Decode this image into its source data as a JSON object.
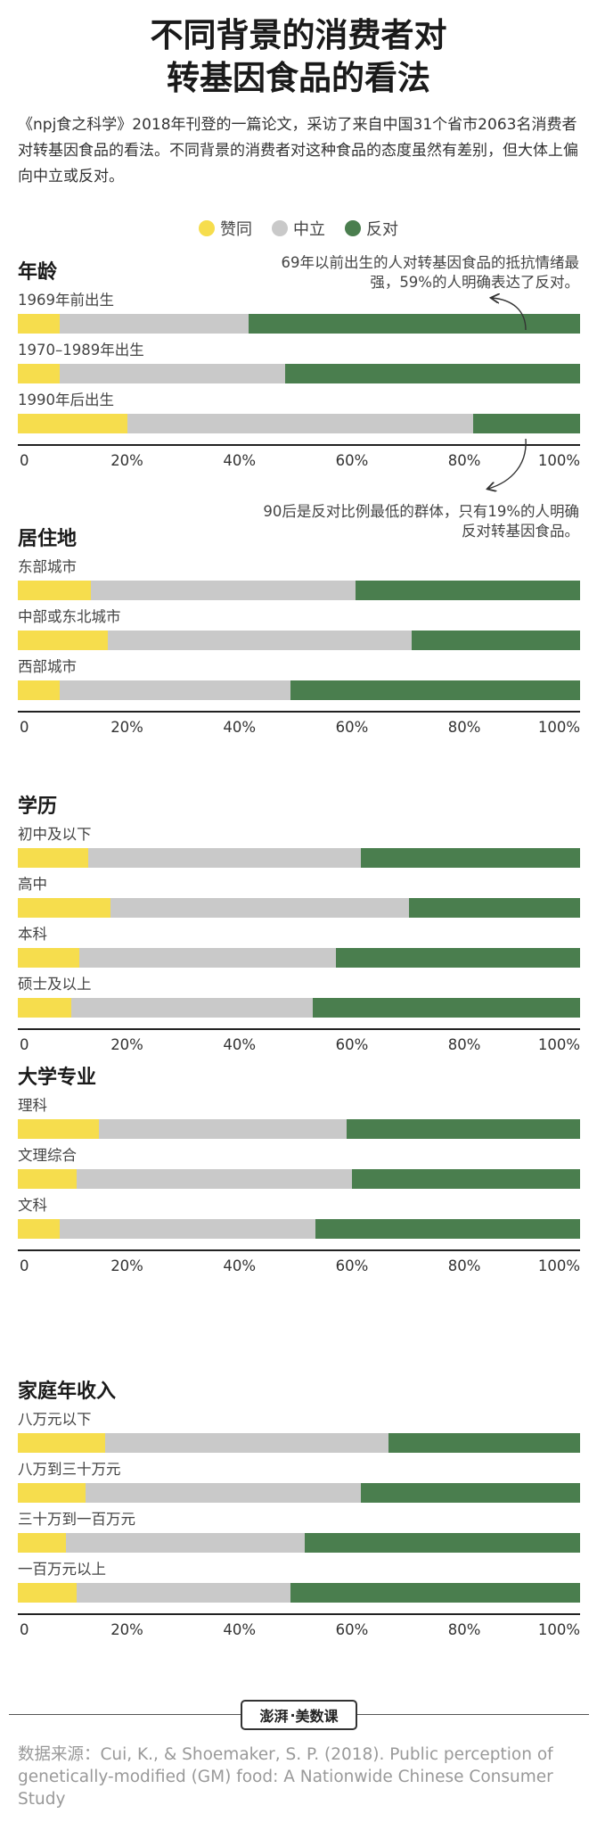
{
  "title_line1": "不同背景的消费者对",
  "title_line2": "转基因食品的看法",
  "intro": "《npj食之科学》2018年刊登的一篇论文，采访了来自中国31个省市2063名消费者对转基因食品的看法。不同背景的消费者对这种食品的态度虽然有差别，但大体上偏向中立或反对。",
  "legend": [
    {
      "label": "赞同",
      "color": "#f6dd4d"
    },
    {
      "label": "中立",
      "color": "#c9c9c9"
    },
    {
      "label": "反对",
      "color": "#4a7e4e"
    }
  ],
  "annotations": {
    "age_top": "69年以前出生的人对转基因食品的抵抗情绪最强，59%的人明确表达了反对。",
    "age_bottom": "90后是反对比例最低的群体，只有19%的人明确反对转基因食品。"
  },
  "logo": {
    "seal": "澎湃",
    "text": "美数课"
  },
  "source": "数据来源：Cui, K., & Shoemaker, S. P. (2018). Public perception of genetically-modified (GM) food: A Nationwide Chinese Consumer Study",
  "chart_data": {
    "type": "bar",
    "orientation": "horizontal-stacked-100",
    "series_names": [
      "赞同",
      "中立",
      "反对"
    ],
    "x_ticks": [
      "0",
      "20%",
      "40%",
      "60%",
      "80%",
      "100%"
    ],
    "xlim": [
      0,
      100
    ],
    "groups": [
      {
        "title": "年龄",
        "categories": [
          {
            "label": "1969年前出生",
            "values": [
              7.5,
              33.5,
              59
            ]
          },
          {
            "label": "1970–1989年出生",
            "values": [
              7.5,
              40,
              52.5
            ]
          },
          {
            "label": "1990年后出生",
            "values": [
              19.5,
              61.5,
              19
            ]
          }
        ]
      },
      {
        "title": "居住地",
        "categories": [
          {
            "label": "东部城市",
            "values": [
              13,
              47,
              40
            ]
          },
          {
            "label": "中部或东北城市",
            "values": [
              16,
              54,
              30
            ]
          },
          {
            "label": "西部城市",
            "values": [
              7.5,
              41,
              51.5
            ]
          }
        ]
      },
      {
        "title": "学历",
        "categories": [
          {
            "label": "初中及以下",
            "values": [
              12.5,
              48.5,
              39
            ]
          },
          {
            "label": "高中",
            "values": [
              16.5,
              53,
              30.5
            ]
          },
          {
            "label": "本科",
            "values": [
              11,
              45.5,
              43.5
            ]
          },
          {
            "label": "硕士及以上",
            "values": [
              9.5,
              43,
              47.5
            ]
          }
        ]
      },
      {
        "title": "大学专业",
        "categories": [
          {
            "label": "理科",
            "values": [
              14.5,
              44,
              41.5
            ]
          },
          {
            "label": "文理综合",
            "values": [
              10.5,
              49,
              40.5
            ]
          },
          {
            "label": "文科",
            "values": [
              7.5,
              45.5,
              47
            ]
          }
        ]
      },
      {
        "title": "家庭年收入",
        "categories": [
          {
            "label": "八万元以下",
            "values": [
              15.5,
              50.5,
              34
            ]
          },
          {
            "label": "八万到三十万元",
            "values": [
              12,
              49,
              39
            ]
          },
          {
            "label": "三十万到一百万元",
            "values": [
              8.5,
              42.5,
              49
            ]
          },
          {
            "label": "一百万元以上",
            "values": [
              10.5,
              38,
              51.5
            ]
          }
        ]
      }
    ]
  }
}
